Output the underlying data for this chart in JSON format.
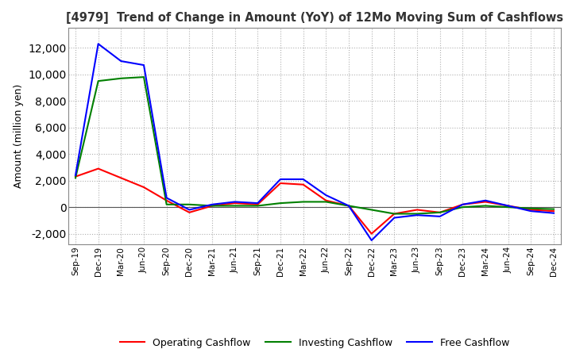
{
  "title": "[4979]  Trend of Change in Amount (YoY) of 12Mo Moving Sum of Cashflows",
  "ylabel": "Amount (million yen)",
  "ylim": [
    -2800,
    13500
  ],
  "yticks": [
    -2000,
    0,
    2000,
    4000,
    6000,
    8000,
    10000,
    12000
  ],
  "x_labels": [
    "Sep-19",
    "Dec-19",
    "Mar-20",
    "Jun-20",
    "Sep-20",
    "Dec-20",
    "Mar-21",
    "Jun-21",
    "Sep-21",
    "Dec-21",
    "Mar-22",
    "Jun-22",
    "Sep-22",
    "Dec-22",
    "Mar-23",
    "Jun-23",
    "Sep-23",
    "Dec-23",
    "Mar-24",
    "Jun-24",
    "Sep-24",
    "Dec-24"
  ],
  "operating": [
    2300,
    2900,
    2200,
    1500,
    500,
    -400,
    100,
    300,
    200,
    1800,
    1700,
    500,
    100,
    -2000,
    -500,
    -200,
    -400,
    200,
    400,
    100,
    -200,
    -300
  ],
  "investing": [
    2200,
    9500,
    9700,
    9800,
    200,
    200,
    100,
    100,
    100,
    300,
    400,
    400,
    100,
    -200,
    -500,
    -500,
    -400,
    0,
    100,
    0,
    -100,
    -150
  ],
  "free": [
    2400,
    12300,
    11000,
    10700,
    700,
    -200,
    200,
    400,
    300,
    2100,
    2100,
    900,
    100,
    -2500,
    -800,
    -600,
    -700,
    200,
    500,
    100,
    -300,
    -450
  ],
  "legend_labels": [
    "Operating Cashflow",
    "Investing Cashflow",
    "Free Cashflow"
  ],
  "line_colors": [
    "#ff0000",
    "#008000",
    "#0000ff"
  ],
  "background_color": "#ffffff",
  "grid_color": "#b0b0b0"
}
